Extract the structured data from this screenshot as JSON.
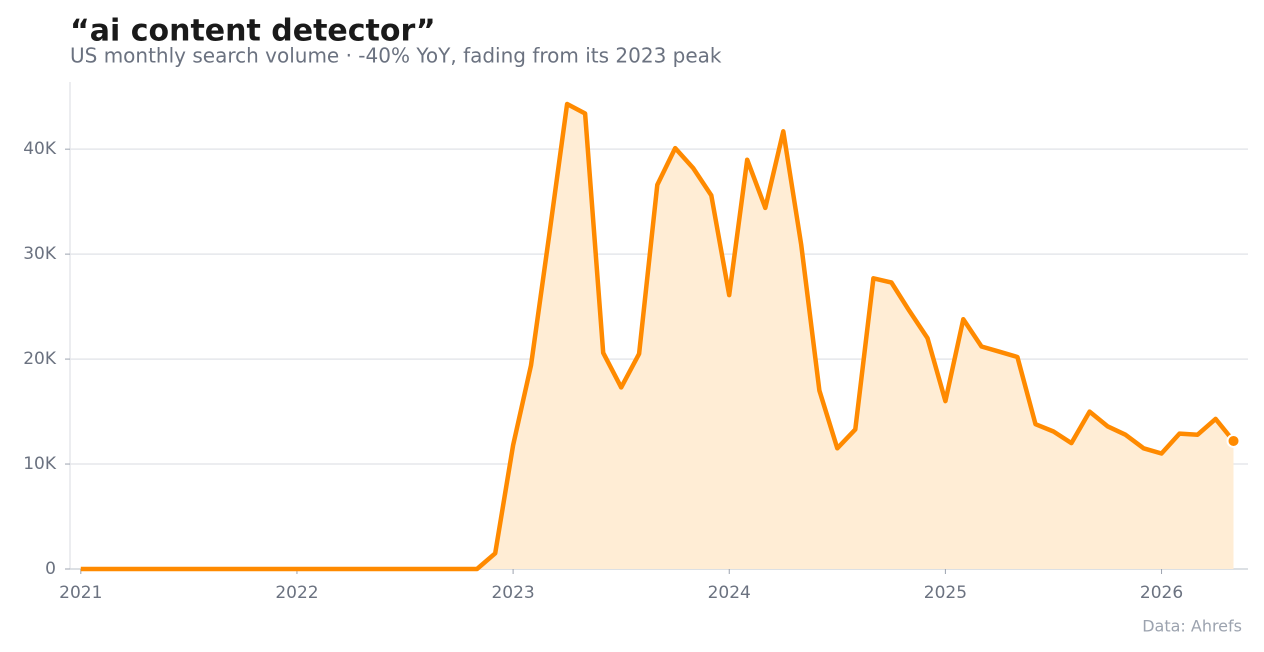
{
  "chart_data": {
    "type": "area",
    "title": "“ai content detector”",
    "subtitle": "US monthly search volume · -40% YoY, fading from its 2023 peak",
    "source": "Data: Ahrefs",
    "x": [
      2021,
      2021.083,
      2021.167,
      2021.25,
      2021.333,
      2021.417,
      2021.5,
      2021.583,
      2021.667,
      2021.75,
      2021.833,
      2021.917,
      2022,
      2022.083,
      2022.167,
      2022.25,
      2022.333,
      2022.417,
      2022.5,
      2022.583,
      2022.667,
      2022.75,
      2022.833,
      2022.917,
      2023,
      2023.083,
      2023.167,
      2023.25,
      2023.333,
      2023.417,
      2023.5,
      2023.583,
      2023.667,
      2023.75,
      2023.833,
      2023.917,
      2024,
      2024.083,
      2024.167,
      2024.25,
      2024.333,
      2024.417,
      2024.5,
      2024.583,
      2024.667,
      2024.75,
      2024.833,
      2024.917,
      2025,
      2025.083,
      2025.167,
      2025.25,
      2025.333,
      2025.417,
      2025.5,
      2025.583,
      2025.667,
      2025.75,
      2025.833,
      2025.917,
      2026,
      2026.083,
      2026.167,
      2026.25,
      2026.333
    ],
    "values": [
      0,
      0,
      0,
      0,
      0,
      0,
      0,
      0,
      0,
      0,
      0,
      0,
      0,
      0,
      0,
      0,
      0,
      0,
      0,
      0,
      0,
      0,
      0,
      1500,
      11800,
      19400,
      31800,
      44300,
      43400,
      20600,
      17300,
      20500,
      36600,
      40100,
      38200,
      35600,
      26100,
      39000,
      34400,
      41700,
      30900,
      17000,
      11500,
      13300,
      27700,
      27300,
      24600,
      22000,
      16000,
      23800,
      21200,
      20700,
      20200,
      13800,
      13100,
      12000,
      15000,
      13600,
      12800,
      11500,
      11000,
      12900,
      12800,
      14300,
      12200
    ],
    "color": "#ff8a00",
    "fill": "#ffedd5",
    "xlim": [
      2020.95,
      2026.4
    ],
    "xticks": [
      2021,
      2022,
      2023,
      2024,
      2025,
      2026
    ],
    "ylim": [
      0,
      46400
    ],
    "yticks": [
      0,
      {
        "value": 10000,
        "label": "10K"
      },
      {
        "value": 20000,
        "label": "20K"
      },
      {
        "value": 30000,
        "label": "30K"
      },
      {
        "value": 40000,
        "label": "40K"
      }
    ],
    "grid": true
  }
}
